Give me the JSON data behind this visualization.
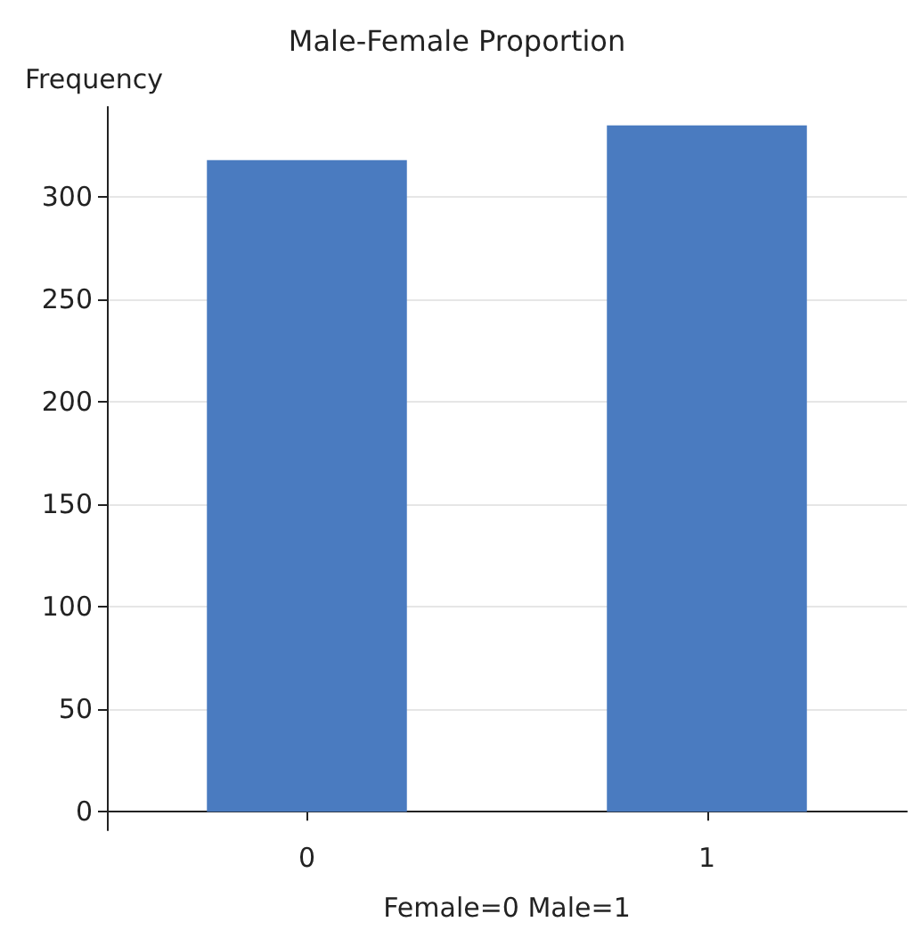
{
  "chart_data": {
    "type": "bar",
    "title": "Male-Female Proportion",
    "xlabel": "Female=0 Male=1",
    "ylabel": "Frequency",
    "categories": [
      "0",
      "1"
    ],
    "values": [
      318,
      335
    ],
    "color": "#4a7bc0",
    "ylim": [
      -9,
      344
    ],
    "yticks": [
      0,
      50,
      100,
      150,
      200,
      250,
      300
    ],
    "grid": "y"
  }
}
